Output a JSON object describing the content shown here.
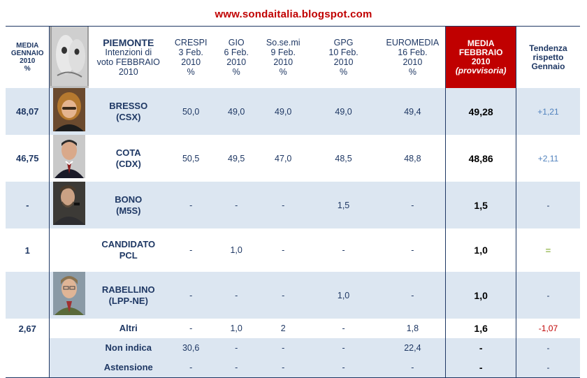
{
  "site_url": "www.sondaitalia.blogspot.com",
  "header": {
    "media_gennaio": [
      "MEDIA",
      "GENNAIO",
      "2010",
      "%"
    ],
    "region": "PIEMONTE",
    "title_lines": [
      "Intenzioni di",
      "voto FEBBRAIO",
      "2010"
    ],
    "pollsters": [
      {
        "name": "CRESPI",
        "date": "3 Feb.",
        "year": "2010",
        "unit": "%"
      },
      {
        "name": "GIO",
        "date": "6 Feb.",
        "year": "2010",
        "unit": "%"
      },
      {
        "name": "So.se.mi",
        "date": "9 Feb.",
        "year": "2010",
        "unit": "%"
      },
      {
        "name": "GPG",
        "date": "10 Feb.",
        "year": "2010",
        "unit": "%"
      },
      {
        "name": "EUROMEDIA",
        "date": "16 Feb.",
        "year": "2010",
        "unit": "%"
      }
    ],
    "media_febbraio": [
      "MEDIA",
      "FEBBRAIO",
      "2010",
      "(provvisoria)"
    ],
    "tendenza": [
      "Tendenza",
      "rispetto",
      "Gennaio"
    ]
  },
  "rows": [
    {
      "gennaio": "48,07",
      "name": "BRESSO",
      "party": "(CSX)",
      "values": [
        "50,0",
        "49,0",
        "49,0",
        "49,0",
        "49,4"
      ],
      "media": "49,28",
      "trend": "+1,21",
      "photo": "bresso-photo"
    },
    {
      "gennaio": "46,75",
      "name": "COTA",
      "party": "(CDX)",
      "values": [
        "50,5",
        "49,5",
        "47,0",
        "48,5",
        "48,8"
      ],
      "media": "48,86",
      "trend": "+2,11",
      "photo": "cota-photo"
    },
    {
      "gennaio": "-",
      "name": "BONO",
      "party": "(M5S)",
      "values": [
        "-",
        "-",
        "-",
        "1,5",
        "-"
      ],
      "media": "1,5",
      "trend": "-",
      "photo": "bono-photo"
    },
    {
      "gennaio": "1",
      "name": "CANDIDATO",
      "party": "PCL",
      "values": [
        "-",
        "1,0",
        "-",
        "-",
        "-"
      ],
      "media": "1,0",
      "trend": "=",
      "photo": ""
    },
    {
      "gennaio": "",
      "name": "RABELLINO",
      "party": "(LPP-NE)",
      "values": [
        "-",
        "-",
        "-",
        "1,0",
        "-"
      ],
      "media": "1,0",
      "trend": "-",
      "photo": "rabellino-photo"
    }
  ],
  "extra_rows": [
    {
      "gennaio": "2,67",
      "label": "Altri",
      "values": [
        "-",
        "1,0",
        "2",
        "-",
        "1,8"
      ],
      "media": "1,6",
      "trend": "-1,07"
    },
    {
      "gennaio": "",
      "label": "Non indica",
      "values": [
        "30,6",
        "-",
        "-",
        "-",
        "22,4"
      ],
      "media": "-",
      "trend": "-"
    },
    {
      "gennaio": "",
      "label": "Astensione",
      "values": [
        "-",
        "-",
        "-",
        "-",
        "-"
      ],
      "media": "-",
      "trend": "-"
    }
  ],
  "colors": {
    "accent_red": "#c00000",
    "navy": "#1f3864",
    "row_shade": "#dce6f1",
    "trend_pos": "#4f81bd",
    "trend_eq": "#9bbb59"
  }
}
